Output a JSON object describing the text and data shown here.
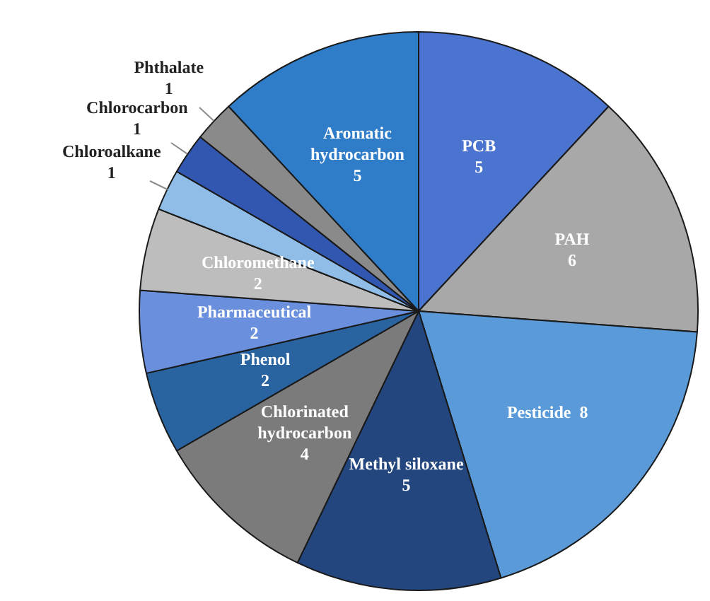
{
  "chart_data": {
    "type": "pie",
    "categories": [
      "PCB",
      "PAH",
      "Pesticide",
      "Methyl siloxane",
      "Chlorinated hydrocarbon",
      "Phenol",
      "Pharmaceutical",
      "Chloromethane",
      "Chloroalkane",
      "Chlorocarbon",
      "Phthalate",
      "Aromatic hydrocarbon"
    ],
    "values": [
      5,
      6,
      8,
      5,
      4,
      2,
      2,
      2,
      1,
      1,
      1,
      5
    ],
    "colors": [
      "#4a74cf",
      "#a8a8a8",
      "#5b9ad8",
      "#23467f",
      "#7b7b7b",
      "#2a64a0",
      "#6a8fdc",
      "#bdbdbd",
      "#8fbde8",
      "#3157b0",
      "#8a8a8a",
      "#2f7cc8"
    ],
    "data_labels": true
  }
}
